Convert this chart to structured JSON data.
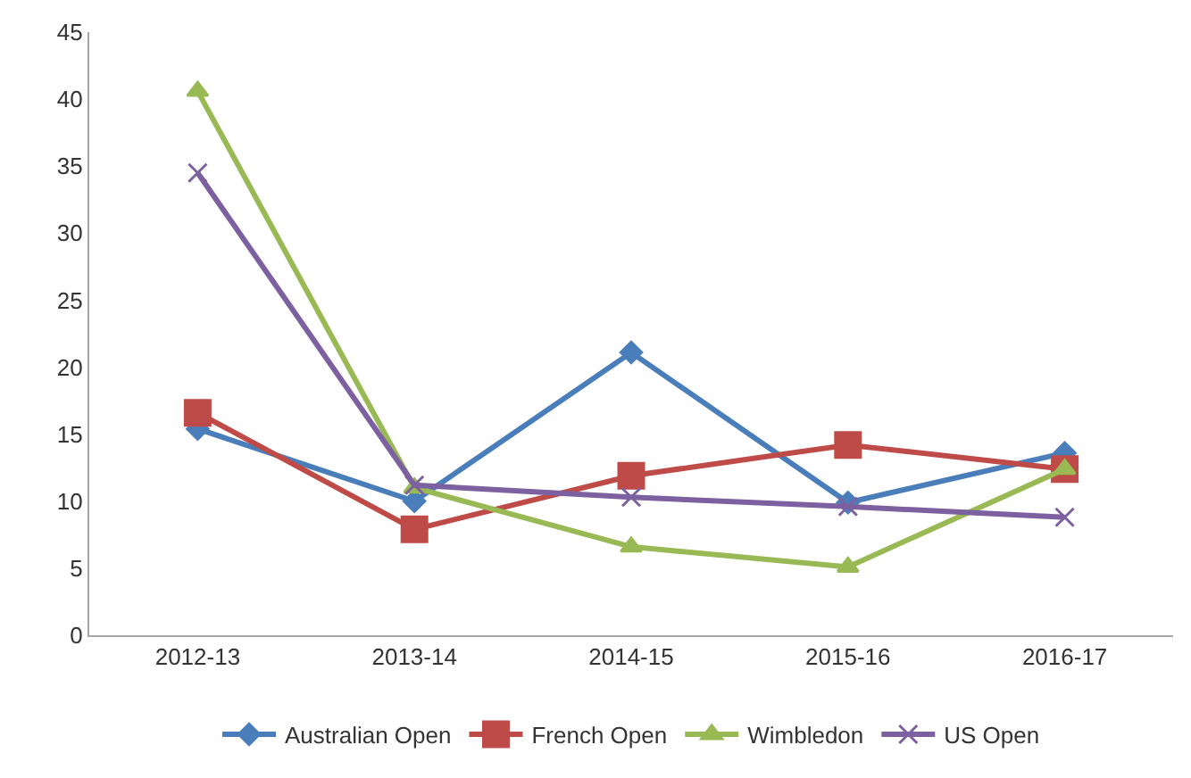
{
  "chart_data": {
    "type": "line",
    "categories": [
      "2012-13",
      "2013-14",
      "2014-15",
      "2015-16",
      "2016-17"
    ],
    "series": [
      {
        "name": "Australian Open",
        "color": "#4a7ebb",
        "marker": "diamond",
        "values": [
          15.4,
          10.0,
          21.1,
          9.9,
          13.6
        ]
      },
      {
        "name": "French Open",
        "color": "#be4b48",
        "marker": "square",
        "values": [
          16.6,
          7.9,
          11.9,
          14.2,
          12.4
        ]
      },
      {
        "name": "Wimbledon",
        "color": "#98b954",
        "marker": "triangle",
        "values": [
          40.6,
          11.0,
          6.6,
          5.1,
          12.4
        ]
      },
      {
        "name": "US Open",
        "color": "#7d60a0",
        "marker": "cross",
        "values": [
          34.5,
          11.2,
          10.3,
          9.6,
          8.8
        ]
      }
    ],
    "ylim": [
      0,
      45
    ],
    "yticks": [
      0,
      5,
      10,
      15,
      20,
      25,
      30,
      35,
      40,
      45
    ],
    "legend": "bottom",
    "line_style": "solid"
  }
}
